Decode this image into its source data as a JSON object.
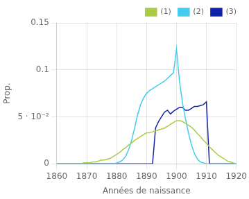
{
  "chart_data": {
    "type": "line",
    "xlabel": "Années de naissance",
    "ylabel": "Prop.",
    "xlim": [
      1860,
      1920
    ],
    "ylim": [
      0,
      0.15
    ],
    "xticks": [
      1860,
      1870,
      1880,
      1890,
      1900,
      1910,
      1920
    ],
    "yticks": [
      0,
      {
        "value": 0.05,
        "label": "5 · 10⁻²"
      },
      0.1,
      0.15
    ],
    "grid": true,
    "legend": "upper right",
    "x": [
      1860,
      1861,
      1862,
      1863,
      1864,
      1865,
      1866,
      1867,
      1868,
      1869,
      1870,
      1871,
      1872,
      1873,
      1874,
      1875,
      1876,
      1877,
      1878,
      1879,
      1880,
      1881,
      1882,
      1883,
      1884,
      1885,
      1886,
      1887,
      1888,
      1889,
      1890,
      1891,
      1892,
      1893,
      1894,
      1895,
      1896,
      1897,
      1898,
      1899,
      1900,
      1901,
      1902,
      1903,
      1904,
      1905,
      1906,
      1907,
      1908,
      1909,
      1910,
      1911,
      1912,
      1913,
      1914,
      1915,
      1916,
      1917,
      1918,
      1919,
      1920
    ],
    "series": [
      {
        "name": "(1)",
        "color": "#aacc44",
        "values": [
          0.0,
          0.0,
          0.0,
          0.0,
          0.0,
          0.0,
          0.0,
          0.0,
          0.0,
          0.001,
          0.001,
          0.001,
          0.002,
          0.002,
          0.003,
          0.004,
          0.004,
          0.005,
          0.006,
          0.008,
          0.01,
          0.012,
          0.015,
          0.017,
          0.02,
          0.022,
          0.025,
          0.027,
          0.029,
          0.031,
          0.033,
          0.033,
          0.034,
          0.035,
          0.036,
          0.037,
          0.038,
          0.04,
          0.042,
          0.044,
          0.046,
          0.046,
          0.045,
          0.043,
          0.041,
          0.039,
          0.036,
          0.032,
          0.029,
          0.025,
          0.022,
          0.018,
          0.015,
          0.012,
          0.009,
          0.007,
          0.005,
          0.003,
          0.002,
          0.001,
          0.0
        ]
      },
      {
        "name": "(2)",
        "color": "#44ccee",
        "values": [
          0.0,
          0.0,
          0.0,
          0.0,
          0.0,
          0.0,
          0.0,
          0.0,
          0.0,
          0.0,
          0.0,
          0.0,
          0.0,
          0.0,
          0.0,
          0.0,
          0.0,
          0.0,
          0.0,
          0.0,
          0.001,
          0.002,
          0.004,
          0.008,
          0.015,
          0.025,
          0.038,
          0.052,
          0.063,
          0.07,
          0.075,
          0.078,
          0.08,
          0.082,
          0.084,
          0.086,
          0.088,
          0.091,
          0.094,
          0.097,
          0.122,
          0.088,
          0.065,
          0.048,
          0.033,
          0.02,
          0.011,
          0.005,
          0.002,
          0.001,
          0.0,
          0.0,
          0.0,
          0.0,
          0.0,
          0.0,
          0.0,
          0.0,
          0.0,
          0.0,
          0.0
        ]
      },
      {
        "name": "(3)",
        "color": "#1122aa",
        "values": [
          0.0,
          0.0,
          0.0,
          0.0,
          0.0,
          0.0,
          0.0,
          0.0,
          0.0,
          0.0,
          0.0,
          0.0,
          0.0,
          0.0,
          0.0,
          0.0,
          0.0,
          0.0,
          0.0,
          0.0,
          0.0,
          0.0,
          0.0,
          0.0,
          0.0,
          0.0,
          0.0,
          0.0,
          0.0,
          0.0,
          0.0,
          0.0,
          0.0,
          0.038,
          0.045,
          0.05,
          0.055,
          0.057,
          0.053,
          0.056,
          0.058,
          0.06,
          0.06,
          0.057,
          0.057,
          0.059,
          0.061,
          0.061,
          0.062,
          0.063,
          0.066,
          0.0,
          0.0,
          0.0,
          0.0,
          0.0,
          0.0,
          0.0,
          0.0,
          0.0,
          0.0
        ]
      }
    ]
  }
}
